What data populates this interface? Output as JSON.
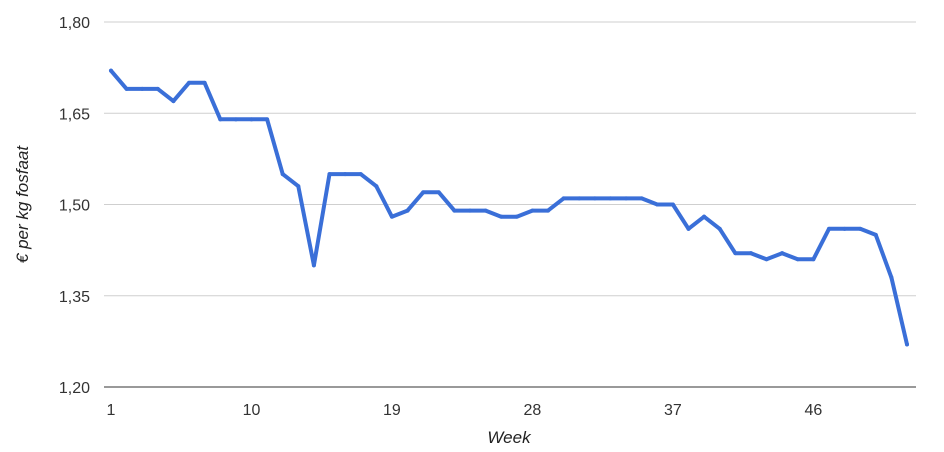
{
  "chart_data": {
    "type": "line",
    "title": "",
    "xlabel": "Week",
    "ylabel": "€ per kg fosfaat",
    "xlim": [
      1,
      52
    ],
    "ylim": [
      1.2,
      1.8
    ],
    "x_ticks": [
      1,
      10,
      19,
      28,
      37,
      46
    ],
    "x_tick_labels": [
      "1",
      "10",
      "19",
      "28",
      "37",
      "46"
    ],
    "y_ticks": [
      1.2,
      1.35,
      1.5,
      1.65,
      1.8
    ],
    "y_tick_labels": [
      "1,20",
      "1,35",
      "1,50",
      "1,65",
      "1,80"
    ],
    "grid": true,
    "series_color": "#3a6fd8",
    "x": [
      1,
      2,
      3,
      4,
      5,
      6,
      7,
      8,
      9,
      10,
      11,
      12,
      13,
      14,
      15,
      16,
      17,
      18,
      19,
      20,
      21,
      22,
      23,
      24,
      25,
      26,
      27,
      28,
      29,
      30,
      31,
      32,
      33,
      34,
      35,
      36,
      37,
      38,
      39,
      40,
      41,
      42,
      43,
      44,
      45,
      46,
      47,
      48,
      49,
      50,
      51,
      52
    ],
    "series": [
      {
        "values": [
          1.72,
          1.69,
          1.69,
          1.69,
          1.67,
          1.7,
          1.7,
          1.64,
          1.64,
          1.64,
          1.64,
          1.55,
          1.53,
          1.4,
          1.55,
          1.55,
          1.55,
          1.53,
          1.48,
          1.49,
          1.52,
          1.52,
          1.49,
          1.49,
          1.49,
          1.48,
          1.48,
          1.49,
          1.49,
          1.51,
          1.51,
          1.51,
          1.51,
          1.51,
          1.51,
          1.5,
          1.5,
          1.46,
          1.48,
          1.46,
          1.42,
          1.42,
          1.41,
          1.42,
          1.41,
          1.41,
          1.46,
          1.46,
          1.46,
          1.45,
          1.38,
          1.27
        ]
      }
    ]
  }
}
